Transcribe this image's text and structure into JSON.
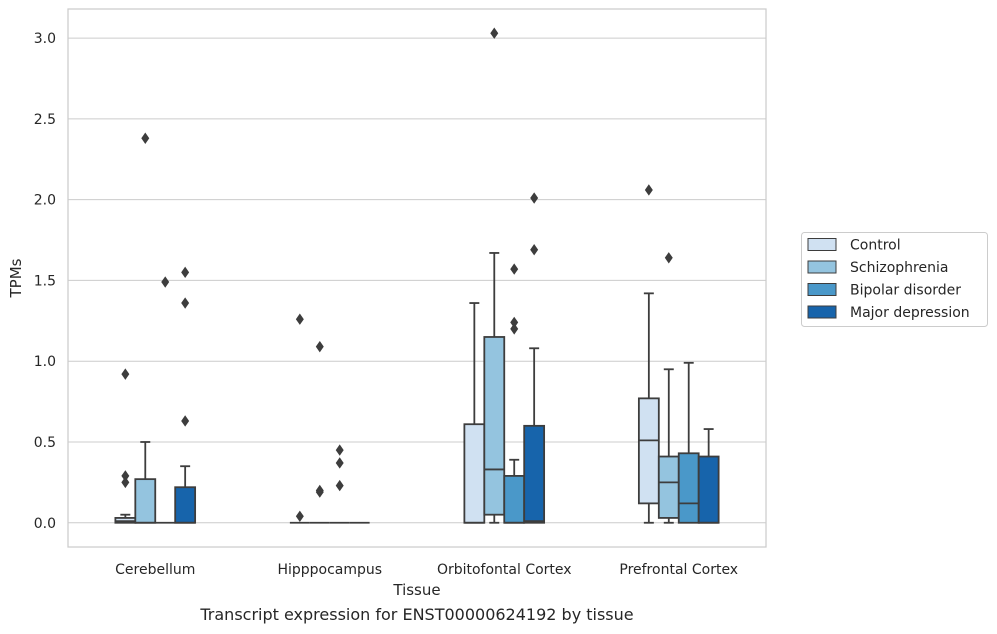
{
  "caption": "Transcript expression for ENST00000624192 by tissue",
  "chart_data": {
    "type": "box",
    "xlabel": "Tissue",
    "ylabel": "TPMs",
    "ylim": [
      -0.15,
      3.18
    ],
    "yticks": [
      0.0,
      0.5,
      1.0,
      1.5,
      2.0,
      2.5,
      3.0
    ],
    "ytick_labels": [
      "0.0",
      "0.5",
      "1.0",
      "1.5",
      "2.0",
      "2.5",
      "3.0"
    ],
    "grid": true,
    "legend_position": "right",
    "categories": [
      "Cerebellum",
      "Hipppocampus",
      "Orbitofontal Cortex",
      "Prefrontal Cortex"
    ],
    "series": [
      {
        "name": "Control",
        "color": "#d0e1f2",
        "boxes": [
          {
            "q1": 0.0,
            "median": 0.01,
            "q3": 0.03,
            "whisker_low": 0.0,
            "whisker_high": 0.05,
            "outliers": [
              0.29,
              0.25,
              0.92
            ]
          },
          {
            "q1": 0.0,
            "median": 0.0,
            "q3": 0.0,
            "whisker_low": 0.0,
            "whisker_high": 0.0,
            "outliers": [
              0.04,
              1.26
            ]
          },
          {
            "q1": 0.0,
            "median": 0.0,
            "q3": 0.61,
            "whisker_low": 0.0,
            "whisker_high": 1.36,
            "outliers": []
          },
          {
            "q1": 0.12,
            "median": 0.51,
            "q3": 0.77,
            "whisker_low": 0.0,
            "whisker_high": 1.42,
            "outliers": [
              2.06
            ]
          }
        ]
      },
      {
        "name": "Schizophrenia",
        "color": "#94c4df",
        "boxes": [
          {
            "q1": 0.0,
            "median": 0.0,
            "q3": 0.27,
            "whisker_low": 0.0,
            "whisker_high": 0.5,
            "outliers": [
              2.38
            ]
          },
          {
            "q1": 0.0,
            "median": 0.0,
            "q3": 0.0,
            "whisker_low": 0.0,
            "whisker_high": 0.0,
            "outliers": [
              0.2,
              0.19,
              1.09
            ]
          },
          {
            "q1": 0.05,
            "median": 0.33,
            "q3": 1.15,
            "whisker_low": 0.0,
            "whisker_high": 1.67,
            "outliers": [
              3.03
            ]
          },
          {
            "q1": 0.03,
            "median": 0.25,
            "q3": 0.41,
            "whisker_low": 0.0,
            "whisker_high": 0.95,
            "outliers": [
              1.64
            ]
          }
        ]
      },
      {
        "name": "Bipolar disorder",
        "color": "#4a98c9",
        "boxes": [
          {
            "q1": 0.0,
            "median": 0.0,
            "q3": 0.0,
            "whisker_low": 0.0,
            "whisker_high": 0.0,
            "outliers": [
              1.49
            ]
          },
          {
            "q1": 0.0,
            "median": 0.0,
            "q3": 0.0,
            "whisker_low": 0.0,
            "whisker_high": 0.0,
            "outliers": [
              0.45,
              0.37,
              0.23
            ]
          },
          {
            "q1": 0.0,
            "median": 0.0,
            "q3": 0.29,
            "whisker_low": 0.0,
            "whisker_high": 0.39,
            "outliers": [
              1.57,
              1.24,
              1.2
            ]
          },
          {
            "q1": 0.0,
            "median": 0.12,
            "q3": 0.43,
            "whisker_low": 0.0,
            "whisker_high": 0.99,
            "outliers": []
          }
        ]
      },
      {
        "name": "Major depression",
        "color": "#1764ab",
        "boxes": [
          {
            "q1": 0.0,
            "median": 0.0,
            "q3": 0.22,
            "whisker_low": 0.0,
            "whisker_high": 0.35,
            "outliers": [
              1.55,
              1.36,
              0.63
            ]
          },
          {
            "q1": 0.0,
            "median": 0.0,
            "q3": 0.0,
            "whisker_low": 0.0,
            "whisker_high": 0.0,
            "outliers": []
          },
          {
            "q1": 0.0,
            "median": 0.01,
            "q3": 0.6,
            "whisker_low": 0.0,
            "whisker_high": 1.08,
            "outliers": [
              2.01,
              1.69
            ]
          },
          {
            "q1": 0.0,
            "median": 0.0,
            "q3": 0.41,
            "whisker_low": 0.0,
            "whisker_high": 0.58,
            "outliers": []
          }
        ]
      }
    ]
  }
}
